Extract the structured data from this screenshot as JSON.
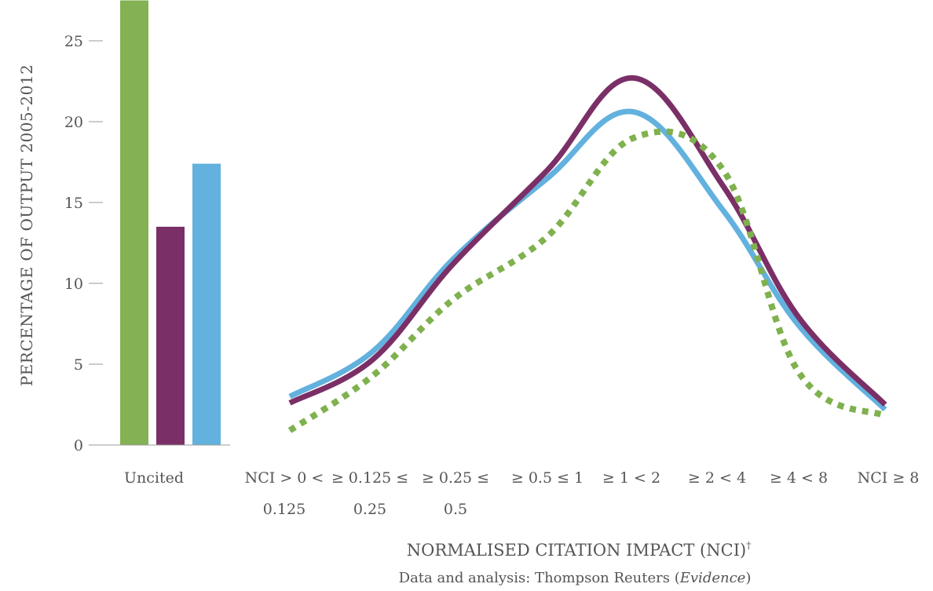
{
  "chart_data": {
    "type": "bar+line",
    "ylabel": "PERCENTAGE OF OUTPUT 2005-2012",
    "xlabel": "NORMALISED CITATION IMPACT (NCI)",
    "xlabel_marker": "†",
    "source_prefix": "Data and analysis: Thompson Reuters (",
    "source_emph": "Evidence",
    "source_suffix": ")",
    "ylim": [
      0,
      27
    ],
    "yticks": [
      0,
      5,
      10,
      15,
      20,
      25
    ],
    "bar_category": "Uncited",
    "bars": [
      {
        "value": 27.5,
        "color": "#84b153"
      },
      {
        "value": 13.5,
        "color": "#7a2f66"
      },
      {
        "value": 17.4,
        "color": "#62b1de"
      }
    ],
    "categories": [
      [
        "NCI > 0 <",
        "0.125"
      ],
      [
        "≥ 0.125 ≤",
        "0.25"
      ],
      [
        "≥ 0.25 ≤",
        "0.5"
      ],
      [
        "≥ 0.5 ≤ 1"
      ],
      [
        "≥ 1 < 2"
      ],
      [
        "≥ 2 < 4"
      ],
      [
        "≥ 4 < 8"
      ],
      [
        "NCI ≥ 8"
      ]
    ],
    "series": [
      {
        "values": [
          3.0,
          5.8,
          11.5,
          16.5,
          20.6,
          14.5,
          7.4,
          2.2
        ],
        "color": "#62b1de",
        "style": "solid"
      },
      {
        "values": [
          2.6,
          5.3,
          11.2,
          17.0,
          22.7,
          16.0,
          7.9,
          2.5
        ],
        "color": "#7a2f66",
        "style": "solid"
      },
      {
        "values": [
          0.9,
          4.3,
          9.0,
          12.9,
          19.0,
          17.0,
          4.5,
          1.8
        ],
        "color": "#7fb14e",
        "style": "dotted"
      }
    ]
  }
}
